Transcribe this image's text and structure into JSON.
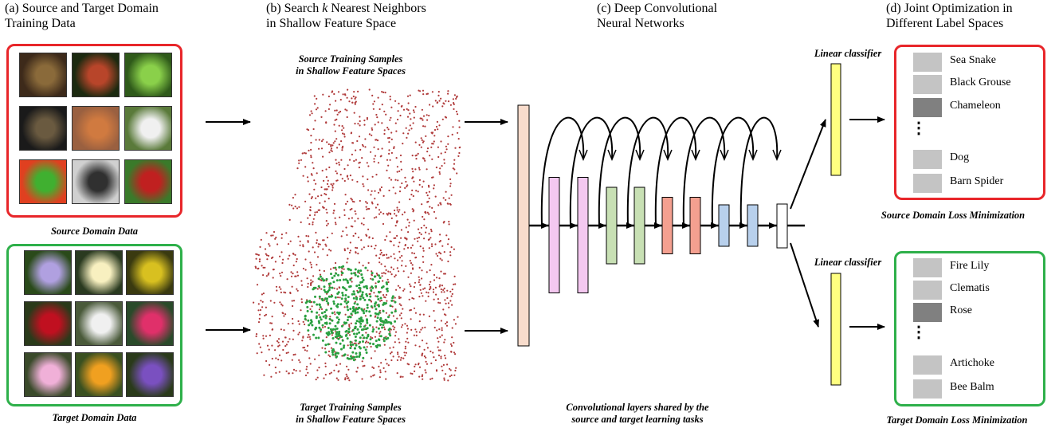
{
  "headers": {
    "a": [
      "(a) Source and Target Domain",
      "Training Data"
    ],
    "b_prefix": "(b) Search ",
    "b_k": "k",
    "b_suffix": " Nearest Neighbors",
    "b_line2": "in Shallow Feature Space",
    "c": [
      "(c) Deep Convolutional",
      "Neural Networks"
    ],
    "d": [
      "(d) Joint Optimization in",
      "Different Label Spaces"
    ]
  },
  "captions": {
    "source_domain": "Source Domain Data",
    "target_domain": "Target Domain Data",
    "source_samples": [
      "Source Training Samples",
      "in Shallow Feature Spaces"
    ],
    "target_samples": [
      "Target Training Samples",
      "in Shallow Feature Spaces"
    ],
    "conv_shared": [
      "Convolutional layers shared by the",
      "source and target learning tasks"
    ],
    "linear_classifier_top": "Linear classifier",
    "linear_classifier_bottom": "Linear classifier",
    "source_loss": "Source Domain Loss Minimization",
    "target_loss": "Target Domain Loss Minimization",
    "ellipsis": "⋮"
  },
  "source_labels": [
    {
      "text": "Sea Snake",
      "shade": "#c4c4c4"
    },
    {
      "text": "Black Grouse",
      "shade": "#c4c4c4"
    },
    {
      "text": "Chameleon",
      "shade": "#808080"
    },
    {
      "text": "Dog",
      "shade": "#c4c4c4"
    },
    {
      "text": "Barn Spider",
      "shade": "#c4c4c4"
    }
  ],
  "target_labels": [
    {
      "text": "Fire Lily",
      "shade": "#c4c4c4"
    },
    {
      "text": "Clematis",
      "shade": "#c4c4c4"
    },
    {
      "text": "Rose",
      "shade": "#808080"
    },
    {
      "text": "Artichoke",
      "shade": "#c4c4c4"
    },
    {
      "text": "Bee Balm",
      "shade": "#c4c4c4"
    }
  ],
  "source_images": [
    {
      "name": "fish-photo",
      "colors": [
        "#3d2a1a",
        "#8a6a3a"
      ]
    },
    {
      "name": "rooster-photo",
      "colors": [
        "#1c2a10",
        "#b8452a"
      ]
    },
    {
      "name": "lizard-photo",
      "colors": [
        "#2f5a1a",
        "#8ad04a"
      ]
    },
    {
      "name": "spider-photo",
      "colors": [
        "#1a1a1a",
        "#6a5a40"
      ]
    },
    {
      "name": "crab-photo",
      "colors": [
        "#9a6040",
        "#d07a40"
      ]
    },
    {
      "name": "dog-photo",
      "colors": [
        "#5a7a3a",
        "#f0f0f0"
      ]
    },
    {
      "name": "cartoon-photo",
      "colors": [
        "#e04020",
        "#40b030"
      ]
    },
    {
      "name": "toolcase-photo",
      "colors": [
        "#d0d0d0",
        "#303030"
      ]
    },
    {
      "name": "mower-photo",
      "colors": [
        "#3a7a2a",
        "#c02020"
      ]
    }
  ],
  "target_images": [
    {
      "name": "passionflower-photo",
      "colors": [
        "#2a4a1a",
        "#b0a0e0"
      ]
    },
    {
      "name": "frangipani-photo",
      "colors": [
        "#2a3a20",
        "#f8f0c0"
      ]
    },
    {
      "name": "yellow-ball-flower-photo",
      "colors": [
        "#3a3a10",
        "#d8c020"
      ]
    },
    {
      "name": "red-rose-photo",
      "colors": [
        "#2a3a1a",
        "#c01020"
      ]
    },
    {
      "name": "white-trumpet-photo",
      "colors": [
        "#4a5a3a",
        "#f0f0f0"
      ]
    },
    {
      "name": "pink-beebalm-photo",
      "colors": [
        "#2a4a2a",
        "#e0306a"
      ]
    },
    {
      "name": "pink-lily-photo",
      "colors": [
        "#3a4a2a",
        "#f0b0d8"
      ]
    },
    {
      "name": "orange-canna-photo",
      "colors": [
        "#3a5020",
        "#f0a020"
      ]
    },
    {
      "name": "purple-clematis-photo",
      "colors": [
        "#2a3a1a",
        "#7a50c0"
      ]
    }
  ],
  "colors": {
    "source_border": "#e8262a",
    "target_border": "#2eb04a",
    "source_points": "#b03a3a",
    "target_points": "#2aa040",
    "input_layer": "#f8dccc",
    "conv_pink": "#f4c8f0",
    "conv_green": "#c8e0b4",
    "conv_red": "#f4a090",
    "conv_blue": "#b8d0ec",
    "classifier": "#ffff80"
  }
}
